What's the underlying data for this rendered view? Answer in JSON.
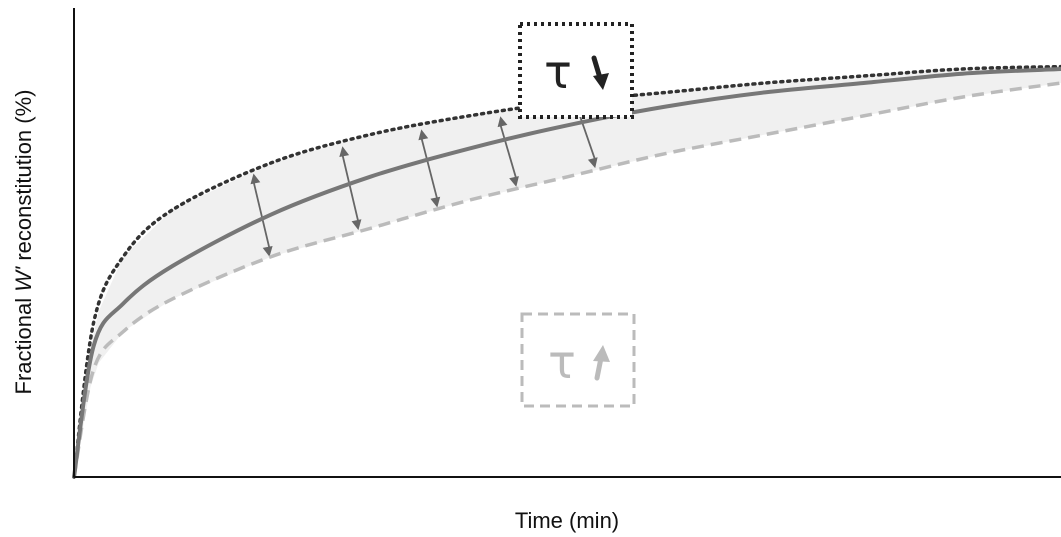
{
  "chart_data": {
    "type": "line",
    "title": "",
    "xlabel": "Time (min)",
    "ylabel_prefix": "Fractional ",
    "ylabel_italic": "W'",
    "ylabel_suffix": " reconstitution (%)",
    "xlim": [
      0,
      1
    ],
    "ylim": [
      0,
      1
    ],
    "grid": false,
    "ticks": false,
    "series": [
      {
        "style": "dotted",
        "color": "#333333",
        "x": [
          0,
          0.02,
          0.05,
          0.1,
          0.2,
          0.3,
          0.4,
          0.5,
          0.6,
          0.7,
          0.8,
          0.9,
          1.0
        ],
        "y": [
          0,
          0.33,
          0.47,
          0.57,
          0.67,
          0.73,
          0.77,
          0.8,
          0.82,
          0.84,
          0.855,
          0.87,
          0.875
        ]
      },
      {
        "style": "solid",
        "color": "#777777",
        "x": [
          0,
          0.02,
          0.05,
          0.1,
          0.2,
          0.3,
          0.4,
          0.5,
          0.6,
          0.7,
          0.8,
          0.9,
          1.0
        ],
        "y": [
          0,
          0.28,
          0.37,
          0.45,
          0.56,
          0.64,
          0.7,
          0.75,
          0.79,
          0.82,
          0.84,
          0.86,
          0.87
        ]
      },
      {
        "style": "dashed",
        "color": "#bbbbbb",
        "x": [
          0,
          0.02,
          0.05,
          0.1,
          0.2,
          0.3,
          0.4,
          0.5,
          0.6,
          0.7,
          0.8,
          0.9,
          1.0
        ],
        "y": [
          0,
          0.23,
          0.31,
          0.38,
          0.47,
          0.53,
          0.59,
          0.64,
          0.69,
          0.73,
          0.77,
          0.81,
          0.84
        ]
      }
    ],
    "arrows_x": [
      0.19,
      0.28,
      0.36,
      0.44,
      0.52
    ],
    "annotations": [
      {
        "text": "τ",
        "arrow": "down",
        "box_style": "dotted",
        "color": "#222222"
      },
      {
        "text": "τ",
        "arrow": "up",
        "box_style": "dashed",
        "color": "#bbbbbb"
      }
    ]
  }
}
